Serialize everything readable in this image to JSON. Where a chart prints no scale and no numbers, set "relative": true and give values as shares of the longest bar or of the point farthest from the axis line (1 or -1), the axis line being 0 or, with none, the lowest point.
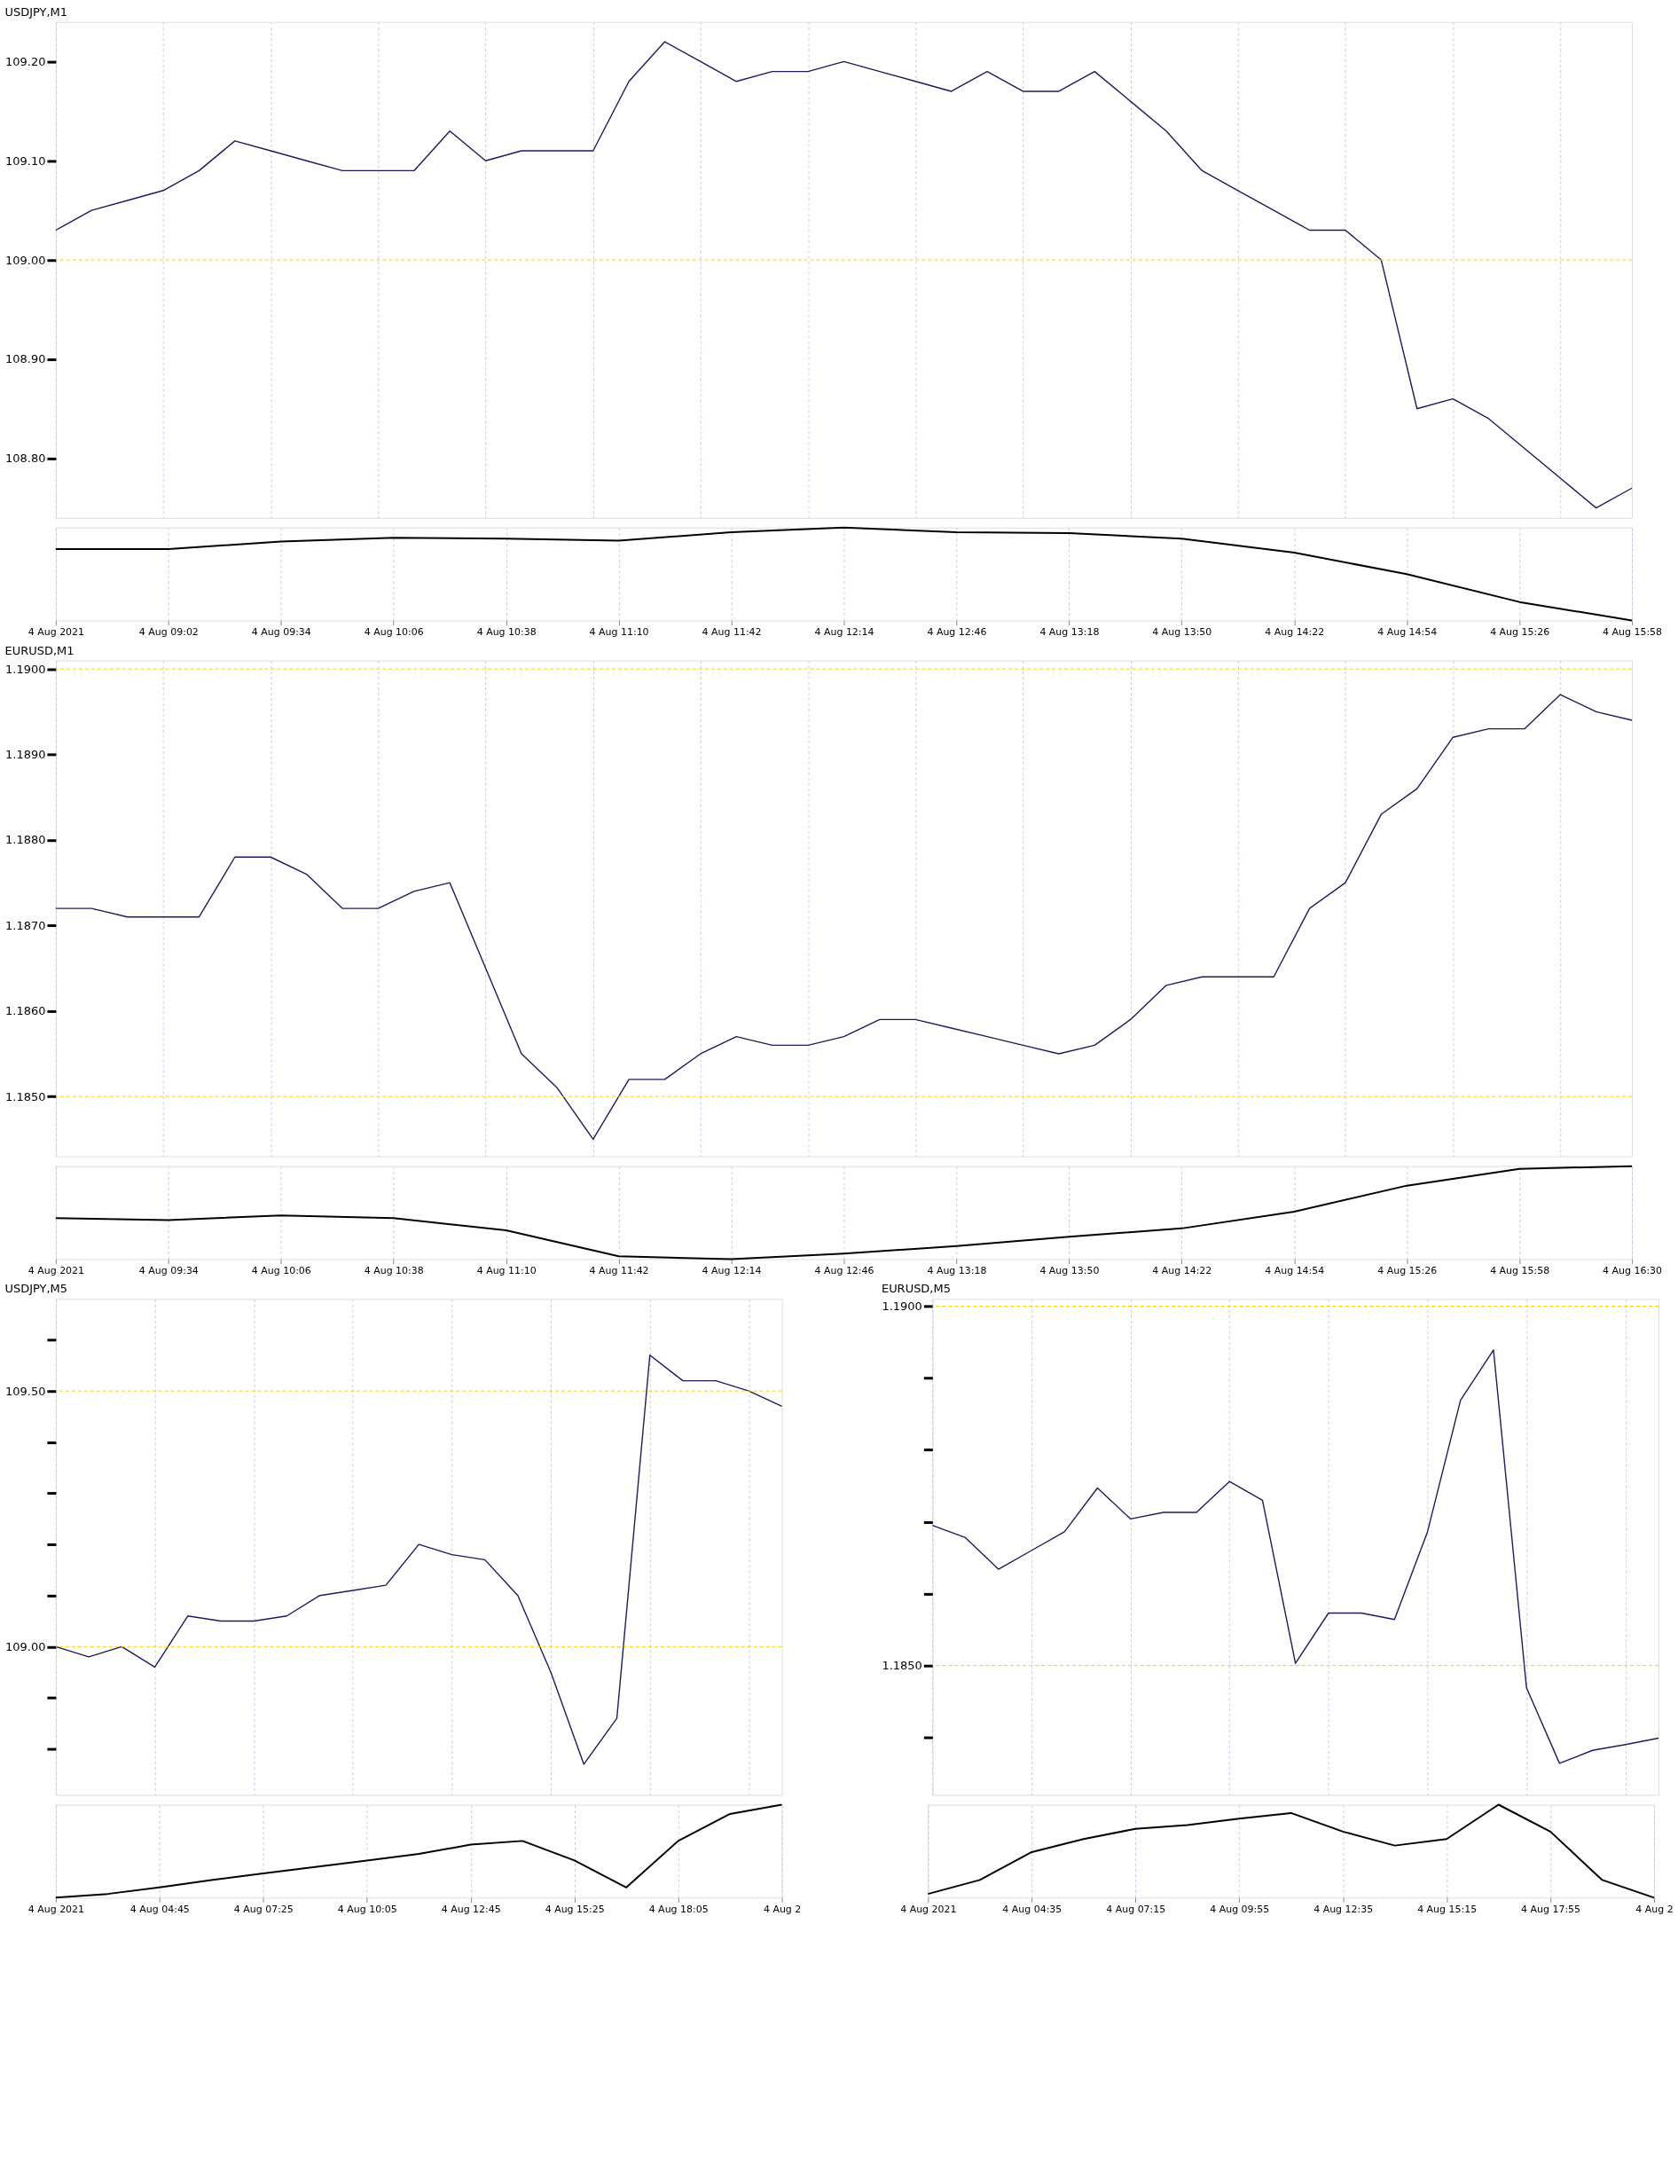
{
  "chart_data": [
    {
      "type": "line",
      "title": "USDJPY,M1",
      "categories": [
        null,
        null,
        null,
        null,
        null,
        null,
        null,
        null,
        null,
        null,
        null,
        null,
        null,
        null,
        null,
        null,
        null,
        null,
        null,
        null,
        null,
        null,
        null,
        null,
        null,
        null,
        null,
        null,
        null,
        null,
        null,
        null,
        null,
        null,
        null,
        null,
        null,
        null,
        null,
        null,
        null,
        null,
        null,
        null,
        null
      ],
      "series": [
        {
          "color": "#1c1c5a",
          "values": [
            109.03,
            109.05,
            109.06,
            109.07,
            109.09,
            109.12,
            109.11,
            109.1,
            109.09,
            109.09,
            109.09,
            109.13,
            109.1,
            109.11,
            109.11,
            109.11,
            109.18,
            109.22,
            109.2,
            109.18,
            109.19,
            109.19,
            109.2,
            109.19,
            109.18,
            109.17,
            109.19,
            109.17,
            109.17,
            109.19,
            109.16,
            109.13,
            109.09,
            109.07,
            109.05,
            109.03,
            109.03,
            109.0,
            108.85,
            108.86,
            108.84,
            108.81,
            108.78,
            108.75,
            108.77
          ]
        }
      ],
      "ylim": [
        108.74,
        109.24
      ],
      "yticks": [
        {
          "value": 108.8,
          "label": "108.80"
        },
        {
          "value": 108.9,
          "label": "108.90"
        },
        {
          "value": 109.0,
          "label": "109.00"
        },
        {
          "value": 109.1,
          "label": "109.10"
        },
        {
          "value": 109.2,
          "label": "109.20"
        }
      ],
      "ref_lines": [
        {
          "axis": "y",
          "value": 109.0,
          "color": "#ffcc00",
          "line_style": "dashed"
        }
      ],
      "grid": "x",
      "tick_labels": "y"
    },
    {
      "type": "line",
      "relative": true,
      "categories": [
        "4 Aug 2021",
        "4 Aug 09:02",
        "4 Aug 09:34",
        "4 Aug 10:06",
        "4 Aug 10:38",
        "4 Aug 11:10",
        "4 Aug 11:42",
        "4 Aug 12:14",
        "4 Aug 12:46",
        "4 Aug 13:18",
        "4 Aug 13:50",
        "4 Aug 14:22",
        "4 Aug 14:54",
        "4 Aug 15:26",
        "4 Aug 15:58"
      ],
      "series": [
        {
          "color": "#000000",
          "values": [
            0.77,
            0.77,
            0.85,
            0.89,
            0.88,
            0.86,
            0.95,
            1,
            0.95,
            0.94,
            0.88,
            0.73,
            0.5,
            0.2,
            0
          ]
        }
      ],
      "grid": "x"
    },
    {
      "type": "line",
      "title": "EURUSD,M1",
      "categories": [
        null,
        null,
        null,
        null,
        null,
        null,
        null,
        null,
        null,
        null,
        null,
        null,
        null,
        null,
        null,
        null,
        null,
        null,
        null,
        null,
        null,
        null,
        null,
        null,
        null,
        null,
        null,
        null,
        null,
        null,
        null,
        null,
        null,
        null,
        null,
        null,
        null,
        null,
        null,
        null,
        null,
        null,
        null,
        null,
        null
      ],
      "series": [
        {
          "color": "#1c1c5a",
          "values": [
            1.1872,
            1.1872,
            1.1871,
            1.1871,
            1.1871,
            1.1878,
            1.1878,
            1.1876,
            1.1872,
            1.1872,
            1.1874,
            1.1875,
            1.1865,
            1.1855,
            1.1851,
            1.1845,
            1.1852,
            1.1852,
            1.1855,
            1.1857,
            1.1856,
            1.1856,
            1.1857,
            1.1859,
            1.1859,
            1.1858,
            1.1857,
            1.1856,
            1.1855,
            1.1856,
            1.1859,
            1.1863,
            1.1864,
            1.1864,
            1.1864,
            1.1872,
            1.1875,
            1.1883,
            1.1886,
            1.1892,
            1.1893,
            1.1893,
            1.1897,
            1.1895,
            1.1894
          ]
        }
      ],
      "ylim": [
        1.1843,
        1.1901
      ],
      "yticks": [
        {
          "value": 1.185,
          "label": "1.1850"
        },
        {
          "value": 1.186,
          "label": "1.1860"
        },
        {
          "value": 1.187,
          "label": "1.1870"
        },
        {
          "value": 1.188,
          "label": "1.1880"
        },
        {
          "value": 1.189,
          "label": "1.1890"
        },
        {
          "value": 1.19,
          "label": "1.1900"
        }
      ],
      "ref_lines": [
        {
          "axis": "y",
          "value": 1.19,
          "color": "#ffcc00",
          "line_style": "dashed"
        },
        {
          "axis": "y",
          "value": 1.185,
          "color": "#ffcc00",
          "line_style": "dashed"
        }
      ],
      "grid": "x",
      "tick_labels": "y"
    },
    {
      "type": "line",
      "relative": true,
      "categories": [
        "4 Aug 2021",
        "4 Aug 09:34",
        "4 Aug 10:06",
        "4 Aug 10:38",
        "4 Aug 11:10",
        "4 Aug 11:42",
        "4 Aug 12:14",
        "4 Aug 12:46",
        "4 Aug 13:18",
        "4 Aug 13:50",
        "4 Aug 14:22",
        "4 Aug 14:54",
        "4 Aug 15:26",
        "4 Aug 15:58",
        "4 Aug 16:30"
      ],
      "series": [
        {
          "color": "#000000",
          "values": [
            0.44,
            0.42,
            0.47,
            0.44,
            0.31,
            0.03,
            0,
            0.06,
            0.14,
            0.24,
            0.33,
            0.51,
            0.79,
            0.97,
            1
          ]
        }
      ],
      "grid": "x"
    },
    {
      "type": "line",
      "title": "USDJPY,M5",
      "categories": [
        null,
        null,
        null,
        null,
        null,
        null,
        null,
        null,
        null,
        null,
        null,
        null,
        null,
        null,
        null,
        null,
        null,
        null,
        null,
        null,
        null,
        null,
        null
      ],
      "series": [
        {
          "color": "#1c1c5a",
          "values": [
            109.0,
            108.98,
            109.0,
            108.96,
            109.06,
            109.05,
            109.05,
            109.06,
            109.1,
            109.11,
            109.12,
            109.2,
            109.18,
            109.17,
            109.1,
            108.95,
            108.77,
            108.86,
            109.57,
            109.52,
            109.52,
            109.5,
            109.47
          ]
        }
      ],
      "ylim": [
        108.71,
        109.68
      ],
      "yticks": [
        {
          "value": 108.8,
          "label": null
        },
        {
          "value": 108.9,
          "label": null
        },
        {
          "value": 109.0,
          "label": "109.00"
        },
        {
          "value": 109.1,
          "label": null
        },
        {
          "value": 109.2,
          "label": null
        },
        {
          "value": 109.3,
          "label": null
        },
        {
          "value": 109.4,
          "label": null
        },
        {
          "value": 109.5,
          "label": "109.50"
        },
        {
          "value": 109.6,
          "label": null
        }
      ],
      "ref_lines": [
        {
          "axis": "y",
          "value": 109.5,
          "color": "#ffcc00",
          "line_style": "dashed"
        },
        {
          "axis": "y",
          "value": 109.0,
          "color": "#ffcc00",
          "line_style": "dashed"
        }
      ],
      "grid": "x",
      "tick_labels": "y"
    },
    {
      "type": "line",
      "title": "EURUSD,M5",
      "categories": [
        null,
        null,
        null,
        null,
        null,
        null,
        null,
        null,
        null,
        null,
        null,
        null,
        null,
        null,
        null,
        null,
        null,
        null,
        null,
        null,
        null,
        null,
        null
      ],
      "series": [
        {
          "color": "#1c1c5a",
          "values": [
            1.18695,
            1.18678,
            1.18634,
            1.1866,
            1.18686,
            1.18747,
            1.18704,
            1.18713,
            1.18713,
            1.18756,
            1.1873,
            1.18503,
            1.18573,
            1.18573,
            1.18564,
            1.18686,
            1.18869,
            1.18939,
            1.18469,
            1.18364,
            1.18382,
            1.1839,
            1.18399
          ]
        }
      ],
      "ylim": [
        1.1832,
        1.1901
      ],
      "yticks": [
        {
          "value": 1.184,
          "label": null
        },
        {
          "value": 1.185,
          "label": "1.1850"
        },
        {
          "value": 1.186,
          "label": null
        },
        {
          "value": 1.187,
          "label": null
        },
        {
          "value": 1.188,
          "label": null
        },
        {
          "value": 1.189,
          "label": null
        },
        {
          "value": 1.19,
          "label": "1.1900"
        }
      ],
      "ref_lines": [
        {
          "axis": "y",
          "value": 1.19,
          "color": "#ffcc00",
          "line_style": "dashed"
        },
        {
          "axis": "y",
          "value": 1.185,
          "color": "#ffcc00",
          "line_style": "dashed"
        }
      ],
      "grid": "x",
      "tick_labels": "y"
    },
    {
      "type": "line",
      "relative": true,
      "categories": [
        "4 Aug 2021",
        null,
        "4 Aug 04:45",
        null,
        "4 Aug 07:25",
        null,
        "4 Aug 10:05",
        null,
        "4 Aug 12:45",
        null,
        "4 Aug 15:25",
        null,
        "4 Aug 18:05",
        null,
        "4 Aug 2"
      ],
      "series": [
        {
          "color": "#000000",
          "values": [
            0,
            0.04,
            0.11,
            0.19,
            0.26,
            0.33,
            0.4,
            0.47,
            0.57,
            0.61,
            0.4,
            0.11,
            0.61,
            0.9,
            1
          ]
        }
      ],
      "grid": "x"
    },
    {
      "type": "line",
      "relative": true,
      "categories": [
        "4 Aug 2021",
        null,
        "4 Aug 04:35",
        null,
        "4 Aug 07:15",
        null,
        "4 Aug 09:55",
        null,
        "4 Aug 12:35",
        null,
        "4 Aug 15:15",
        null,
        "4 Aug 17:55",
        null,
        "4 Aug 2"
      ],
      "series": [
        {
          "color": "#000000",
          "values": [
            0.04,
            0.19,
            0.49,
            0.63,
            0.74,
            0.78,
            0.85,
            0.91,
            0.71,
            0.56,
            0.63,
            1,
            0.71,
            0.19,
            0
          ]
        }
      ],
      "grid": "x"
    }
  ]
}
